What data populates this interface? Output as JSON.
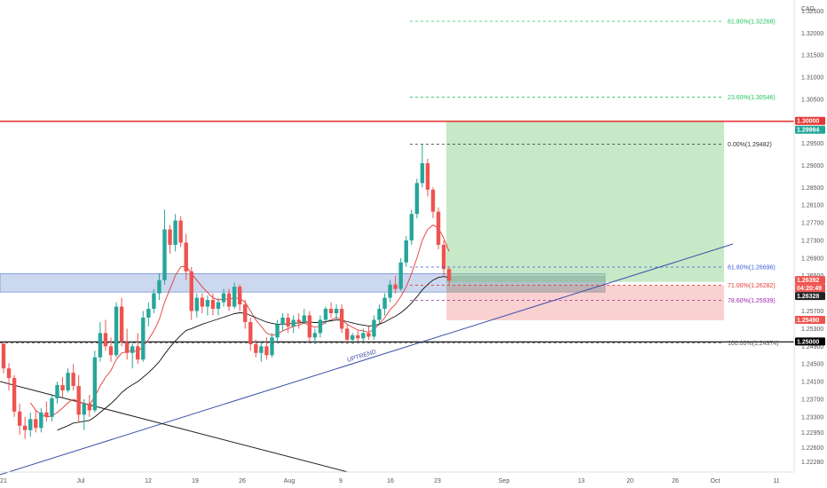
{
  "chart_data": {
    "type": "candlestick",
    "currency_label": "CAD",
    "y_ticks": [
      "1.32500",
      "1.32000",
      "1.31500",
      "1.31000",
      "1.30500",
      "1.30000",
      "1.29500",
      "1.29000",
      "1.28500",
      "1.28100",
      "1.27700",
      "1.27300",
      "1.26900",
      "1.26500",
      "1.25700",
      "1.25300",
      "1.24900",
      "1.24500",
      "1.24100",
      "1.23700",
      "1.23300",
      "1.22950",
      "1.22600",
      "1.22280"
    ],
    "ylim": [
      1.2205,
      1.3275
    ],
    "x_ticks": [
      "21",
      "Jul",
      "12",
      "19",
      "26",
      "Aug",
      "9",
      "16",
      "23",
      "Sep",
      "13",
      "20",
      "26",
      "Oct",
      "11"
    ],
    "price_tags": [
      {
        "label": "1.30000",
        "value": 1.3,
        "color": "#e53935",
        "text_color": "#ffffff"
      },
      {
        "label": "1.29994",
        "value": 1.29994,
        "color": "#26a69a",
        "text_color": "#ffffff"
      },
      {
        "label": "1.26392",
        "value": 1.26392,
        "color": "#ef5350",
        "text_color": "#ffffff"
      },
      {
        "label": "04:20:49",
        "value": 1.2628,
        "color": "#ef5350",
        "text_color": "#ffffff"
      },
      {
        "label": "1.26328",
        "value": 1.26328,
        "color": "#222222",
        "text_color": "#ffffff"
      },
      {
        "label": "1.25490",
        "value": 1.2549,
        "color": "#ef5350",
        "text_color": "#ffffff"
      },
      {
        "label": "1.25000",
        "value": 1.25,
        "color": "#000000",
        "text_color": "#ffffff"
      }
    ],
    "fib_levels": [
      {
        "label": "61.80%(1.32268)",
        "value": 1.32268,
        "color": "#22c55e"
      },
      {
        "label": "23.60%(1.30546)",
        "value": 1.30546,
        "color": "#22c55e"
      },
      {
        "label": "0.00%(1.29482)",
        "value": 1.29482,
        "color": "#333333"
      },
      {
        "label": "61.80%(1.26696)",
        "value": 1.26696,
        "color": "#3b5bdb"
      },
      {
        "label": "71.00%(1.26282)",
        "value": 1.26282,
        "color": "#e53935"
      },
      {
        "label": "78.60%(1.25939)",
        "value": 1.25939,
        "color": "#9c27b0"
      },
      {
        "label": "100.00%(1.24974)",
        "value": 1.24974,
        "color": "#555555"
      }
    ],
    "horizontal_lines": [
      {
        "value": 1.3,
        "color": "#e53935"
      },
      {
        "value": 1.25,
        "color": "#000000"
      }
    ],
    "zones": [
      {
        "name": "support-zone",
        "top": 1.2655,
        "bottom": 1.2613,
        "color": "#8fa8dc"
      },
      {
        "name": "target-zone",
        "top": 1.3,
        "bottom": 1.2636,
        "color": "#8fd48f"
      },
      {
        "name": "stop-zone",
        "top": 1.2628,
        "bottom": 1.2549,
        "color": "#f5a3a3"
      }
    ],
    "trendline_label": "UPTREND",
    "candles": [
      {
        "o": 1.2496,
        "h": 1.25,
        "l": 1.2429,
        "c": 1.244
      },
      {
        "o": 1.244,
        "h": 1.2452,
        "l": 1.239,
        "c": 1.2418
      },
      {
        "o": 1.2418,
        "h": 1.2425,
        "l": 1.233,
        "c": 1.2342
      },
      {
        "o": 1.2342,
        "h": 1.236,
        "l": 1.229,
        "c": 1.231
      },
      {
        "o": 1.231,
        "h": 1.233,
        "l": 1.228,
        "c": 1.23
      },
      {
        "o": 1.23,
        "h": 1.234,
        "l": 1.2285,
        "c": 1.2325
      },
      {
        "o": 1.2325,
        "h": 1.2345,
        "l": 1.2295,
        "c": 1.2305
      },
      {
        "o": 1.2305,
        "h": 1.235,
        "l": 1.2295,
        "c": 1.234
      },
      {
        "o": 1.234,
        "h": 1.2365,
        "l": 1.232,
        "c": 1.233
      },
      {
        "o": 1.233,
        "h": 1.238,
        "l": 1.232,
        "c": 1.2372
      },
      {
        "o": 1.2372,
        "h": 1.241,
        "l": 1.236,
        "c": 1.2402
      },
      {
        "o": 1.2402,
        "h": 1.242,
        "l": 1.2375,
        "c": 1.239
      },
      {
        "o": 1.239,
        "h": 1.244,
        "l": 1.2385,
        "c": 1.243
      },
      {
        "o": 1.243,
        "h": 1.245,
        "l": 1.239,
        "c": 1.24
      },
      {
        "o": 1.24,
        "h": 1.2425,
        "l": 1.232,
        "c": 1.2335
      },
      {
        "o": 1.2335,
        "h": 1.237,
        "l": 1.23,
        "c": 1.236
      },
      {
        "o": 1.236,
        "h": 1.238,
        "l": 1.233,
        "c": 1.2345
      },
      {
        "o": 1.2345,
        "h": 1.248,
        "l": 1.234,
        "c": 1.2465
      },
      {
        "o": 1.2465,
        "h": 1.2545,
        "l": 1.2455,
        "c": 1.252
      },
      {
        "o": 1.252,
        "h": 1.255,
        "l": 1.248,
        "c": 1.249
      },
      {
        "o": 1.249,
        "h": 1.251,
        "l": 1.2455,
        "c": 1.247
      },
      {
        "o": 1.247,
        "h": 1.259,
        "l": 1.2465,
        "c": 1.258
      },
      {
        "o": 1.258,
        "h": 1.26,
        "l": 1.249,
        "c": 1.25
      },
      {
        "o": 1.25,
        "h": 1.253,
        "l": 1.246,
        "c": 1.2475
      },
      {
        "o": 1.2475,
        "h": 1.25,
        "l": 1.244,
        "c": 1.249
      },
      {
        "o": 1.249,
        "h": 1.252,
        "l": 1.245,
        "c": 1.246
      },
      {
        "o": 1.246,
        "h": 1.257,
        "l": 1.2455,
        "c": 1.2555
      },
      {
        "o": 1.2555,
        "h": 1.259,
        "l": 1.2535,
        "c": 1.2575
      },
      {
        "o": 1.2575,
        "h": 1.262,
        "l": 1.2565,
        "c": 1.261
      },
      {
        "o": 1.261,
        "h": 1.2655,
        "l": 1.2595,
        "c": 1.264
      },
      {
        "o": 1.264,
        "h": 1.28,
        "l": 1.263,
        "c": 1.2755
      },
      {
        "o": 1.2755,
        "h": 1.2765,
        "l": 1.27,
        "c": 1.272
      },
      {
        "o": 1.272,
        "h": 1.279,
        "l": 1.2705,
        "c": 1.2775
      },
      {
        "o": 1.2775,
        "h": 1.2785,
        "l": 1.2715,
        "c": 1.2725
      },
      {
        "o": 1.2725,
        "h": 1.2745,
        "l": 1.264,
        "c": 1.266
      },
      {
        "o": 1.266,
        "h": 1.267,
        "l": 1.255,
        "c": 1.257
      },
      {
        "o": 1.257,
        "h": 1.261,
        "l": 1.2555,
        "c": 1.26
      },
      {
        "o": 1.26,
        "h": 1.261,
        "l": 1.2565,
        "c": 1.258
      },
      {
        "o": 1.258,
        "h": 1.2605,
        "l": 1.256,
        "c": 1.2595
      },
      {
        "o": 1.2595,
        "h": 1.261,
        "l": 1.256,
        "c": 1.2575
      },
      {
        "o": 1.2575,
        "h": 1.26,
        "l": 1.256,
        "c": 1.259
      },
      {
        "o": 1.259,
        "h": 1.262,
        "l": 1.258,
        "c": 1.261
      },
      {
        "o": 1.261,
        "h": 1.262,
        "l": 1.257,
        "c": 1.258
      },
      {
        "o": 1.258,
        "h": 1.2635,
        "l": 1.2575,
        "c": 1.2625
      },
      {
        "o": 1.2625,
        "h": 1.263,
        "l": 1.257,
        "c": 1.2585
      },
      {
        "o": 1.2585,
        "h": 1.2595,
        "l": 1.253,
        "c": 1.2545
      },
      {
        "o": 1.2545,
        "h": 1.2555,
        "l": 1.248,
        "c": 1.2495
      },
      {
        "o": 1.2495,
        "h": 1.2505,
        "l": 1.2465,
        "c": 1.2475
      },
      {
        "o": 1.2475,
        "h": 1.25,
        "l": 1.2455,
        "c": 1.249
      },
      {
        "o": 1.249,
        "h": 1.251,
        "l": 1.246,
        "c": 1.247
      },
      {
        "o": 1.247,
        "h": 1.252,
        "l": 1.2465,
        "c": 1.251
      },
      {
        "o": 1.251,
        "h": 1.255,
        "l": 1.25,
        "c": 1.254
      },
      {
        "o": 1.254,
        "h": 1.2565,
        "l": 1.2525,
        "c": 1.2555
      },
      {
        "o": 1.2555,
        "h": 1.2565,
        "l": 1.252,
        "c": 1.2535
      },
      {
        "o": 1.2535,
        "h": 1.256,
        "l": 1.252,
        "c": 1.255
      },
      {
        "o": 1.255,
        "h": 1.2565,
        "l": 1.253,
        "c": 1.2545
      },
      {
        "o": 1.2545,
        "h": 1.2575,
        "l": 1.254,
        "c": 1.256
      },
      {
        "o": 1.256,
        "h": 1.257,
        "l": 1.25,
        "c": 1.251
      },
      {
        "o": 1.251,
        "h": 1.253,
        "l": 1.2495,
        "c": 1.252
      },
      {
        "o": 1.252,
        "h": 1.256,
        "l": 1.251,
        "c": 1.255
      },
      {
        "o": 1.255,
        "h": 1.258,
        "l": 1.254,
        "c": 1.2575
      },
      {
        "o": 1.2575,
        "h": 1.259,
        "l": 1.2555,
        "c": 1.2565
      },
      {
        "o": 1.2565,
        "h": 1.2585,
        "l": 1.255,
        "c": 1.2575
      },
      {
        "o": 1.2575,
        "h": 1.2585,
        "l": 1.252,
        "c": 1.253
      },
      {
        "o": 1.253,
        "h": 1.254,
        "l": 1.2495,
        "c": 1.2505
      },
      {
        "o": 1.2505,
        "h": 1.252,
        "l": 1.2495,
        "c": 1.2515
      },
      {
        "o": 1.2515,
        "h": 1.2525,
        "l": 1.25,
        "c": 1.2508
      },
      {
        "o": 1.2508,
        "h": 1.253,
        "l": 1.25,
        "c": 1.252
      },
      {
        "o": 1.252,
        "h": 1.2535,
        "l": 1.2505,
        "c": 1.2512
      },
      {
        "o": 1.2512,
        "h": 1.256,
        "l": 1.2505,
        "c": 1.255
      },
      {
        "o": 1.255,
        "h": 1.2585,
        "l": 1.254,
        "c": 1.2575
      },
      {
        "o": 1.2575,
        "h": 1.261,
        "l": 1.256,
        "c": 1.26
      },
      {
        "o": 1.26,
        "h": 1.264,
        "l": 1.259,
        "c": 1.263
      },
      {
        "o": 1.263,
        "h": 1.265,
        "l": 1.261,
        "c": 1.262
      },
      {
        "o": 1.262,
        "h": 1.269,
        "l": 1.2615,
        "c": 1.268
      },
      {
        "o": 1.268,
        "h": 1.274,
        "l": 1.267,
        "c": 1.273
      },
      {
        "o": 1.273,
        "h": 1.28,
        "l": 1.272,
        "c": 1.279
      },
      {
        "o": 1.279,
        "h": 1.287,
        "l": 1.278,
        "c": 1.286
      },
      {
        "o": 1.286,
        "h": 1.2948,
        "l": 1.285,
        "c": 1.2905
      },
      {
        "o": 1.2905,
        "h": 1.2915,
        "l": 1.283,
        "c": 1.2845
      },
      {
        "o": 1.2845,
        "h": 1.285,
        "l": 1.278,
        "c": 1.2795
      },
      {
        "o": 1.2795,
        "h": 1.2805,
        "l": 1.271,
        "c": 1.272
      },
      {
        "o": 1.272,
        "h": 1.273,
        "l": 1.265,
        "c": 1.2665
      },
      {
        "o": 1.2665,
        "h": 1.267,
        "l": 1.263,
        "c": 1.2639
      }
    ],
    "moving_averages": [
      {
        "name": "fast",
        "color": "#e53935",
        "values": [
          null,
          null,
          null,
          null,
          null,
          1.2362,
          1.2345,
          1.2335,
          1.233,
          1.2332,
          1.234,
          1.235,
          1.2362,
          1.237,
          1.2365,
          1.236,
          1.2358,
          1.2375,
          1.24,
          1.242,
          1.2435,
          1.246,
          1.2475,
          1.2478,
          1.248,
          1.2478,
          1.249,
          1.2505,
          1.2525,
          1.255,
          1.259,
          1.262,
          1.265,
          1.267,
          1.2672,
          1.2655,
          1.264,
          1.2625,
          1.2612,
          1.26,
          1.2595,
          1.2598,
          1.2596,
          1.26,
          1.2598,
          1.259,
          1.257,
          1.255,
          1.2535,
          1.252,
          1.2515,
          1.2518,
          1.2525,
          1.253,
          1.2535,
          1.2538,
          1.2543,
          1.2538,
          1.2533,
          1.2536,
          1.2545,
          1.255,
          1.2556,
          1.255,
          1.254,
          1.2533,
          1.2527,
          1.2525,
          1.2522,
          1.2528,
          1.254,
          1.2555,
          1.2573,
          1.2585,
          1.2603,
          1.2625,
          1.2655,
          1.269,
          1.273,
          1.2755,
          1.2765,
          1.2758,
          1.2735,
          1.2705
        ]
      },
      {
        "name": "slow",
        "color": "#111111",
        "values": [
          null,
          null,
          null,
          null,
          null,
          null,
          null,
          null,
          null,
          null,
          1.23,
          1.2305,
          1.231,
          1.2316,
          1.2318,
          1.232,
          1.2322,
          1.233,
          1.234,
          1.235,
          1.236,
          1.2372,
          1.2385,
          1.2395,
          1.2403,
          1.241,
          1.242,
          1.243,
          1.2442,
          1.2455,
          1.2472,
          1.2488,
          1.2502,
          1.2515,
          1.2526,
          1.253,
          1.2535,
          1.254,
          1.2544,
          1.2548,
          1.2552,
          1.2556,
          1.256,
          1.2564,
          1.2566,
          1.2565,
          1.256,
          1.2555,
          1.255,
          1.2545,
          1.2542,
          1.254,
          1.254,
          1.2541,
          1.2542,
          1.2543,
          1.2545,
          1.2545,
          1.2544,
          1.2544,
          1.2546,
          1.2548,
          1.255,
          1.2549,
          1.2546,
          1.2543,
          1.254,
          1.2538,
          1.2536,
          1.2537,
          1.254,
          1.2545,
          1.2552,
          1.2558,
          1.2566,
          1.2576,
          1.2588,
          1.2602,
          1.2618,
          1.263,
          1.264,
          1.2646,
          1.2648,
          1.2646
        ]
      }
    ]
  }
}
